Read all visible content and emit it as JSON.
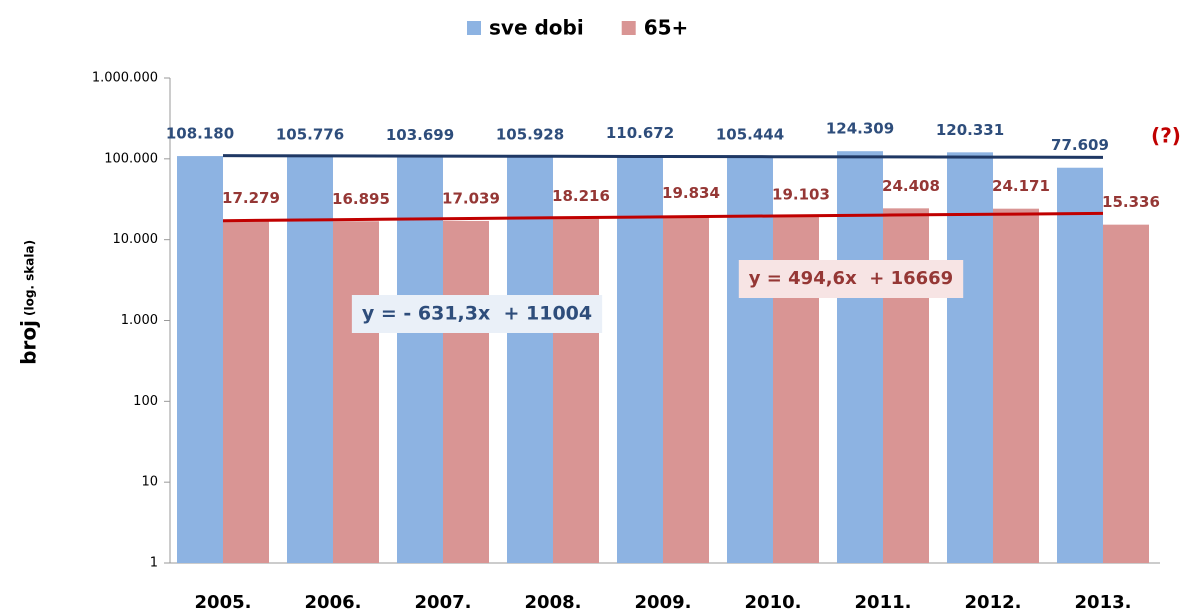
{
  "chart_data": {
    "type": "bar",
    "legend_position": "top",
    "y_label": "broj",
    "y_label_note": "(log. skala)",
    "annotation": "(?)",
    "categories": [
      "2005.",
      "2006.",
      "2007.",
      "2008.",
      "2009.",
      "2010.",
      "2011.",
      "2012.",
      "2013."
    ],
    "series": [
      {
        "name": "sve dobi",
        "color": "#8db3e2",
        "label_color": "#2e4d7b",
        "trend_color": "#1f3864",
        "trend_label": "y = - 631,3x  + 11004",
        "values": [
          108180,
          105776,
          103699,
          105928,
          110672,
          105444,
          124309,
          120331,
          77609
        ],
        "value_labels": [
          "108.180",
          "105.776",
          "103.699",
          "105.928",
          "110.672",
          "105.444",
          "124.309",
          "120.331",
          "77.609"
        ]
      },
      {
        "name": "65+",
        "color": "#d99594",
        "label_color": "#953735",
        "trend_color": "#c00000",
        "trend_label": "y = 494,6x  + 16669",
        "values": [
          17279,
          16895,
          17039,
          18216,
          19834,
          19103,
          24408,
          24171,
          15336
        ],
        "value_labels": [
          "17.279",
          "16.895",
          "17.039",
          "18.216",
          "19.834",
          "19.103",
          "24.408",
          "24.171",
          "15.336"
        ]
      }
    ],
    "log_scale": true,
    "ylim": [
      1,
      1000000
    ],
    "yticks": [
      1,
      10,
      100,
      {
        "value": 1000,
        "label": "1.000"
      },
      {
        "value": 10000,
        "label": "10.000"
      },
      {
        "value": 100000,
        "label": "100.000"
      },
      {
        "value": 1000000,
        "label": "1.000.000"
      }
    ]
  }
}
